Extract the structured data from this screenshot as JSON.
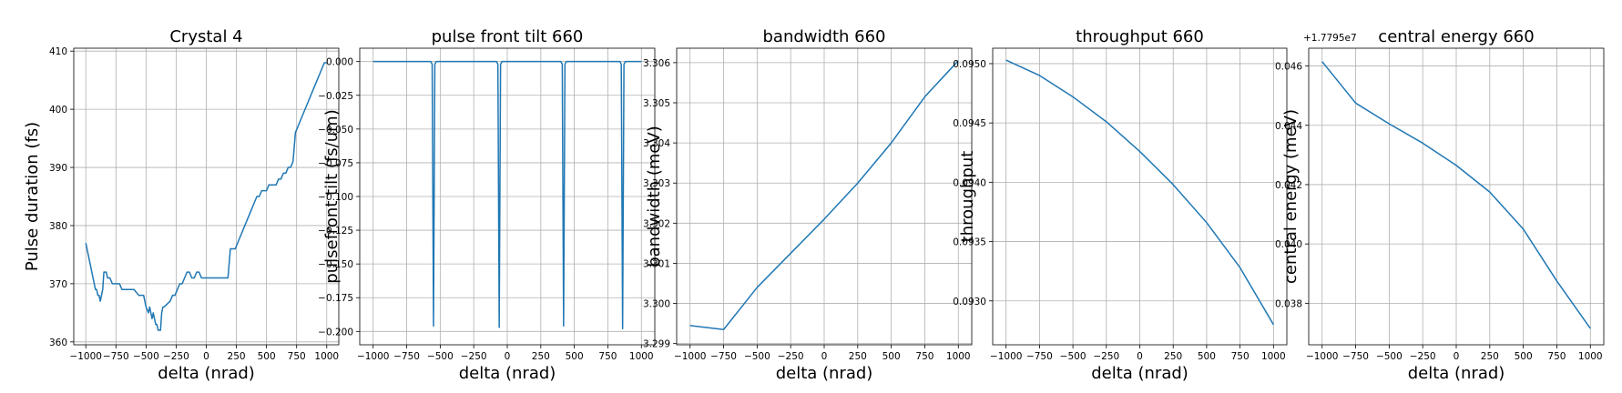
{
  "chart_data": [
    {
      "type": "line",
      "title": "Crystal 4",
      "xlabel": "delta (nrad)",
      "ylabel": "Pulse duration (fs)",
      "xlim": [
        -1100,
        1100
      ],
      "ylim": [
        359.5,
        410.5
      ],
      "grid": true,
      "x_ticks": [
        -1000,
        -750,
        -500,
        -250,
        0,
        250,
        500,
        750,
        1000
      ],
      "x_tick_labels": [
        "−1000",
        "−750",
        "−500",
        "−250",
        "0",
        "250",
        "500",
        "750",
        "1000"
      ],
      "y_ticks": [
        360,
        370,
        380,
        390,
        400,
        410
      ],
      "y_tick_labels": [
        "360",
        "370",
        "380",
        "390",
        "400",
        "410"
      ],
      "offset_text": "",
      "series": [
        {
          "color": "#1f77b4",
          "x": [
            -1000,
            -990,
            -980,
            -970,
            -960,
            -950,
            -940,
            -930,
            -920,
            -910,
            -900,
            -890,
            -880,
            -870,
            -860,
            -850,
            -840,
            -830,
            -820,
            -810,
            -800,
            -780,
            -760,
            -740,
            -720,
            -700,
            -680,
            -660,
            -640,
            -620,
            -600,
            -560,
            -520,
            -500,
            -480,
            -470,
            -460,
            -450,
            -440,
            -430,
            -420,
            -410,
            -400,
            -390,
            -380,
            -370,
            -360,
            -350,
            -300,
            -280,
            -260,
            -240,
            -220,
            -200,
            -180,
            -160,
            -140,
            -120,
            -100,
            -80,
            -60,
            -40,
            -20,
            0,
            20,
            40,
            60,
            80,
            100,
            120,
            140,
            160,
            180,
            200,
            220,
            240,
            260,
            280,
            300,
            320,
            340,
            360,
            380,
            400,
            420,
            440,
            460,
            480,
            500,
            520,
            540,
            560,
            580,
            600,
            620,
            640,
            660,
            680,
            700,
            720,
            740,
            760,
            780,
            800,
            820,
            840,
            860,
            880,
            900,
            920,
            940,
            960,
            980,
            1000
          ],
          "y": [
            377,
            376,
            375,
            374,
            373,
            372,
            371,
            370,
            369,
            369,
            368,
            368,
            367,
            368,
            369,
            372,
            372,
            372,
            371,
            371,
            371,
            370,
            370,
            370,
            370,
            369,
            369,
            369,
            369,
            369,
            369,
            368,
            368,
            366,
            365,
            366,
            365,
            364,
            365,
            364,
            363,
            363,
            362,
            362,
            362,
            365,
            366,
            366,
            367,
            368,
            368,
            369,
            370,
            370,
            371,
            372,
            372,
            371,
            371,
            372,
            372,
            371,
            371,
            371,
            371,
            371,
            371,
            371,
            371,
            371,
            371,
            371,
            371,
            376,
            376,
            376,
            377,
            378,
            379,
            380,
            381,
            382,
            383,
            384,
            385,
            385,
            386,
            386,
            386,
            387,
            387,
            387,
            387,
            388,
            388,
            389,
            389,
            390,
            390,
            391,
            396,
            397,
            398,
            399,
            400,
            401,
            402,
            403,
            404,
            405,
            406,
            407,
            408,
            408
          ]
        }
      ]
    },
    {
      "type": "line",
      "title": "pulse front tilt 660",
      "xlabel": "delta (nrad)",
      "ylabel": "pulsefront tilt (fs/um)",
      "xlim": [
        -1100,
        1100
      ],
      "ylim": [
        -0.2099,
        0.0099
      ],
      "grid": true,
      "x_ticks": [
        -1000,
        -750,
        -500,
        -250,
        0,
        250,
        500,
        750,
        1000
      ],
      "x_tick_labels": [
        "−1000",
        "−750",
        "−500",
        "−250",
        "0",
        "250",
        "500",
        "750",
        "1000"
      ],
      "y_ticks": [
        0.0,
        -0.025,
        -0.05,
        -0.075,
        -0.1,
        -0.125,
        -0.15,
        -0.175,
        -0.2
      ],
      "y_tick_labels": [
        "0.000",
        "−0.025",
        "−0.050",
        "−0.075",
        "−0.100",
        "−0.125",
        "−0.150",
        "−0.175",
        "−0.200"
      ],
      "offset_text": "",
      "series": [
        {
          "color": "#1f77b4",
          "x": [
            -1000,
            -570,
            -560,
            -550,
            -540,
            -530,
            -520,
            -80,
            -70,
            -60,
            -50,
            -40,
            -30,
            400,
            410,
            420,
            430,
            440,
            450,
            840,
            850,
            860,
            870,
            880,
            890,
            1000
          ],
          "y": [
            0.0,
            0.0,
            -0.002,
            -0.196,
            -0.002,
            0.0,
            0.0,
            0.0,
            -0.002,
            -0.197,
            -0.002,
            0.0,
            0.0,
            0.0,
            -0.002,
            -0.196,
            -0.002,
            0.0,
            0.0,
            0.0,
            -0.002,
            -0.198,
            -0.002,
            0.0,
            0.0,
            0.0
          ]
        }
      ]
    },
    {
      "type": "line",
      "title": "bandwidth 660",
      "xlabel": "delta (nrad)",
      "ylabel": "bandwidth (meV)",
      "xlim": [
        -1100,
        1100
      ],
      "ylim": [
        3.29897,
        3.30636
      ],
      "grid": true,
      "x_ticks": [
        -1000,
        -750,
        -500,
        -250,
        0,
        250,
        500,
        750,
        1000
      ],
      "x_tick_labels": [
        "−1000",
        "−750",
        "−500",
        "−250",
        "0",
        "250",
        "500",
        "750",
        "1000"
      ],
      "y_ticks": [
        3.299,
        3.3,
        3.301,
        3.302,
        3.303,
        3.304,
        3.305,
        3.306
      ],
      "y_tick_labels": [
        "3.299",
        "3.300",
        "3.301",
        "3.302",
        "3.303",
        "3.304",
        "3.305",
        "3.306"
      ],
      "offset_text": "",
      "series": [
        {
          "color": "#1f77b4",
          "x": [
            -1000,
            -750,
            -500,
            -250,
            0,
            250,
            500,
            750,
            1000
          ],
          "y": [
            3.29945,
            3.29935,
            3.3004,
            3.30125,
            3.3021,
            3.303,
            3.304,
            3.30515,
            3.30605
          ]
        }
      ]
    },
    {
      "type": "line",
      "title": "throughput 660",
      "xlabel": "delta (nrad)",
      "ylabel": "throughput",
      "xlim": [
        -1100,
        1100
      ],
      "ylim": [
        0.09263,
        0.09513
      ],
      "grid": true,
      "x_ticks": [
        -1000,
        -750,
        -500,
        -250,
        0,
        250,
        500,
        750,
        1000
      ],
      "x_tick_labels": [
        "−1000",
        "−750",
        "−500",
        "−250",
        "0",
        "250",
        "500",
        "750",
        "1000"
      ],
      "y_ticks": [
        0.093,
        0.0935,
        0.094,
        0.0945,
        0.095
      ],
      "y_tick_labels": [
        "0.0930",
        "0.0935",
        "0.0940",
        "0.0945",
        "0.0950"
      ],
      "offset_text": "",
      "series": [
        {
          "color": "#1f77b4",
          "x": [
            -1000,
            -750,
            -500,
            -250,
            0,
            250,
            500,
            750,
            1000
          ],
          "y": [
            0.09503,
            0.0949,
            0.09472,
            0.09451,
            0.09426,
            0.09398,
            0.09366,
            0.09328,
            0.0928
          ]
        }
      ]
    },
    {
      "type": "line",
      "title": "central energy 660",
      "xlabel": "delta (nrad)",
      "ylabel": "central energy (meV)",
      "xlim": [
        -1100,
        1100
      ],
      "ylim": [
        0.0366,
        0.0466
      ],
      "grid": true,
      "x_ticks": [
        -1000,
        -750,
        -500,
        -250,
        0,
        250,
        500,
        750,
        1000
      ],
      "x_tick_labels": [
        "−1000",
        "−750",
        "−500",
        "−250",
        "0",
        "250",
        "500",
        "750",
        "1000"
      ],
      "y_ticks": [
        0.038,
        0.04,
        0.042,
        0.044,
        0.046
      ],
      "y_tick_labels": [
        "0.038",
        "0.040",
        "0.042",
        "0.044",
        "0.046"
      ],
      "offset_text": "+1.7795e7",
      "series": [
        {
          "color": "#1f77b4",
          "x": [
            -1000,
            -750,
            -500,
            -250,
            0,
            250,
            500,
            750,
            1000
          ],
          "y": [
            0.04615,
            0.04475,
            0.04405,
            0.0434,
            0.04265,
            0.04175,
            0.0405,
            0.03875,
            0.03715
          ]
        }
      ]
    }
  ]
}
